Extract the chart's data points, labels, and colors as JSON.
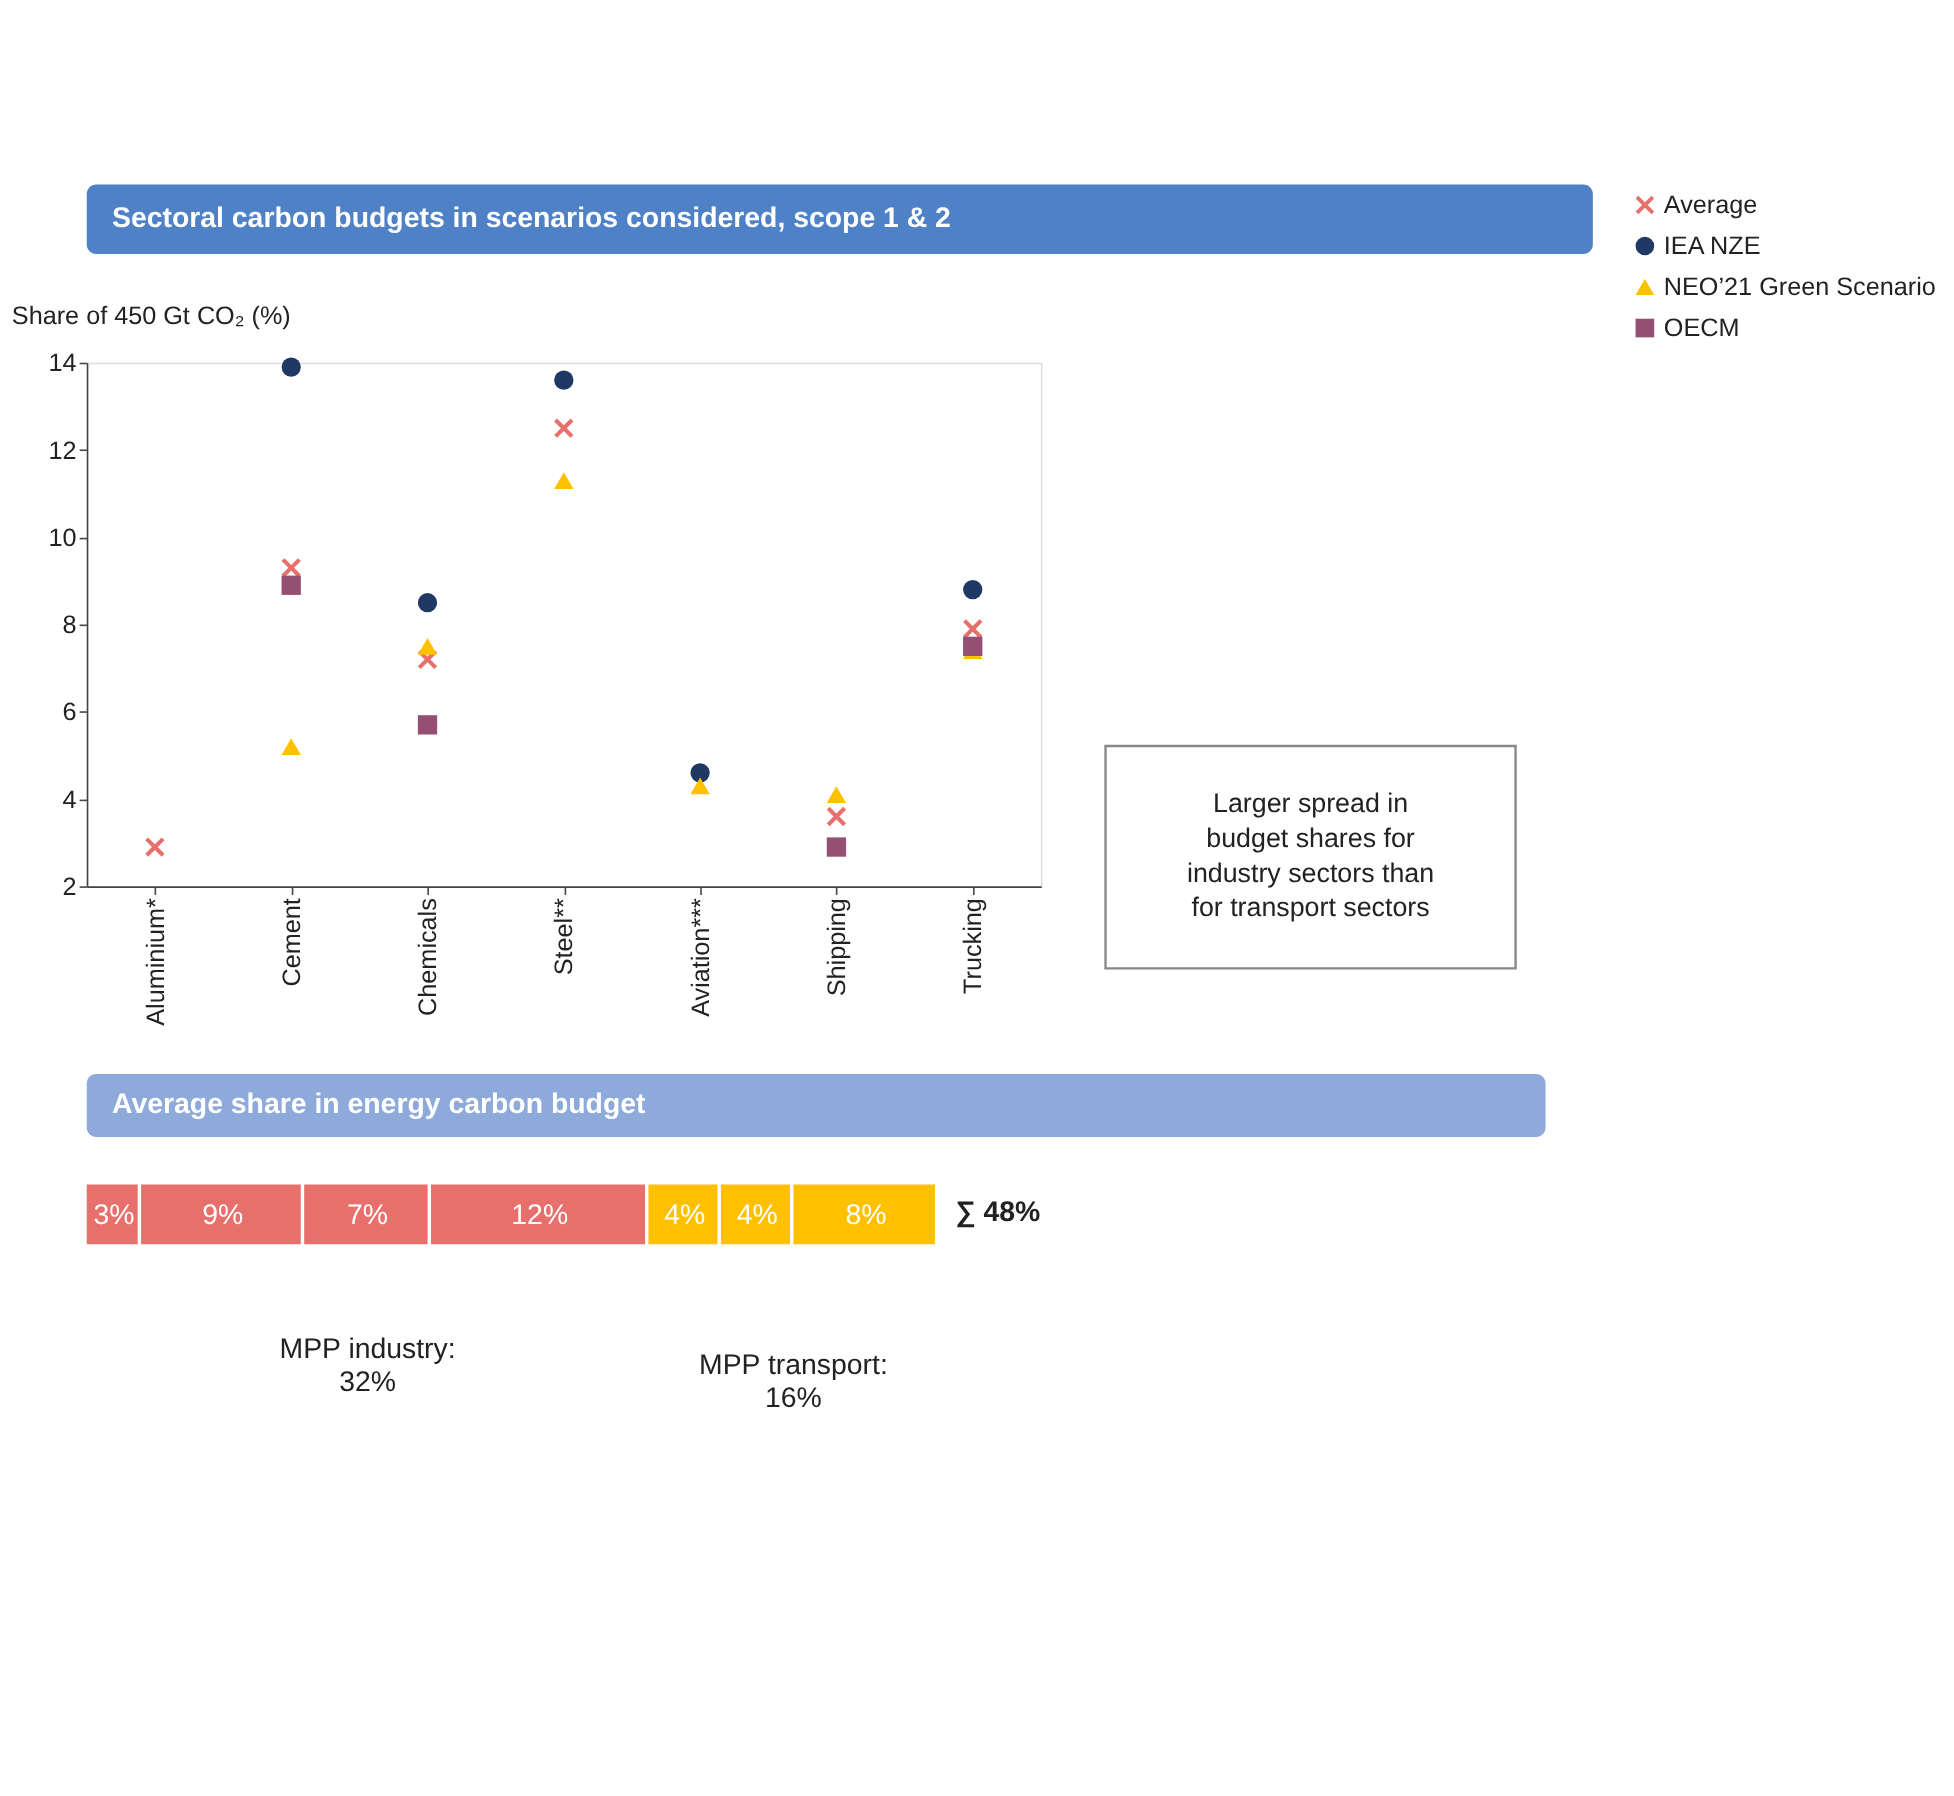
{
  "chart_data": [
    {
      "type": "scatter",
      "title": "Sectoral carbon budgets in scenarios considered, scope 1 & 2",
      "ylabel": "Share of 450 Gt CO₂ (%)",
      "categories": [
        "Aluminium*",
        "Cement",
        "Chemicals",
        "Steel**",
        "Aviation***",
        "Shipping",
        "Trucking"
      ],
      "series": [
        {
          "name": "Average",
          "color": "#e8706c",
          "marker": "cross",
          "values": [
            2.9,
            9.3,
            7.2,
            12.5,
            null,
            3.6,
            7.9
          ]
        },
        {
          "name": "IEA NZE",
          "color": "#1f3864",
          "marker": "circle",
          "values": [
            null,
            13.9,
            8.5,
            13.6,
            4.6,
            null,
            8.8
          ]
        },
        {
          "name": "NEO’21 Green Scenario",
          "color": "#ffc000",
          "marker": "triangle",
          "values": [
            null,
            5.2,
            7.5,
            11.3,
            4.3,
            4.1,
            7.4
          ]
        },
        {
          "name": "OECM",
          "color": "#954f72",
          "marker": "square",
          "values": [
            null,
            8.9,
            5.7,
            null,
            null,
            2.9,
            7.5
          ]
        }
      ],
      "ylim": [
        2,
        14
      ],
      "yticks": [
        2,
        4,
        6,
        8,
        10,
        12,
        14
      ],
      "grid": false,
      "legend": "top right",
      "annotations": [
        "Larger spread in budget shares for industry sectors than for transport sectors"
      ]
    },
    {
      "type": "other",
      "title": "Average share in energy carbon budget",
      "values": [
        3,
        9,
        7,
        12,
        4,
        4,
        8
      ],
      "colors": [
        "#e8706c",
        "#e8706c",
        "#e8706c",
        "#e8706c",
        "#ffc000",
        "#ffc000",
        "#ffc000"
      ],
      "value_labels": [
        "3%",
        "9%",
        "7%",
        "12%",
        "4%",
        "4%",
        "8%"
      ],
      "annotations": [
        "∑ 48%",
        "MPP industry: 32%",
        "MPP transport: 16%"
      ]
    }
  ]
}
